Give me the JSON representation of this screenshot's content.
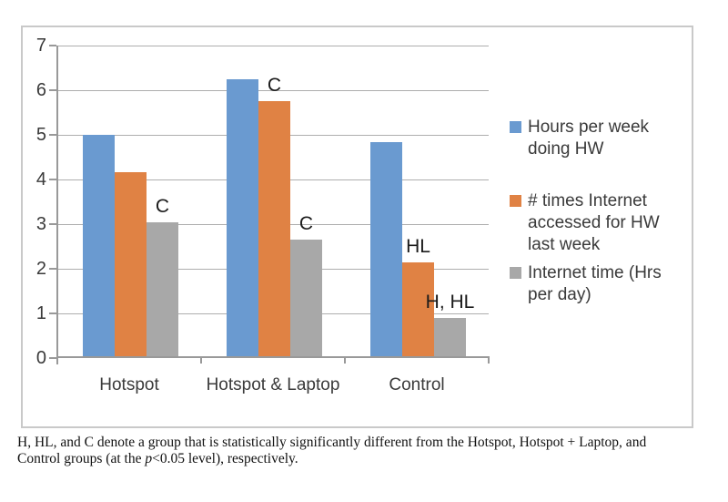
{
  "chart_data": {
    "type": "bar",
    "title": "",
    "xlabel": "",
    "ylabel": "",
    "categories": [
      "Hotspot",
      "Hotspot & Laptop",
      "Control"
    ],
    "series": [
      {
        "name": "Hours per week doing HW",
        "color": "#6a9ad0",
        "values": [
          5.0,
          6.25,
          4.83
        ],
        "annotations": [
          "",
          "",
          ""
        ]
      },
      {
        "name": "# times Internet accessed for HW last week",
        "color": "#e08244",
        "values": [
          4.17,
          5.75,
          2.15
        ],
        "annotations": [
          "",
          "C",
          "HL"
        ]
      },
      {
        "name": "Internet time (Hrs per day)",
        "color": "#a8a8a8",
        "values": [
          3.05,
          2.65,
          0.9
        ],
        "annotations": [
          "C",
          "C",
          "H, HL"
        ]
      }
    ],
    "ylim": [
      0,
      7
    ],
    "ytick_step": 1,
    "yticks": [
      "0",
      "1",
      "2",
      "3",
      "4",
      "5",
      "6",
      "7"
    ],
    "grid": true,
    "legend_position": "right"
  },
  "legend": {
    "items": [
      {
        "series_index": 0,
        "lines": [
          "Hours per week",
          "doing HW"
        ]
      },
      {
        "series_index": 1,
        "lines": [
          "# times Internet",
          "accessed for HW",
          "last week"
        ]
      },
      {
        "series_index": 2,
        "lines": [
          "Internet time (Hrs",
          "per day)"
        ]
      }
    ]
  },
  "caption": {
    "line1": "H, HL, and C denote a group that is statistically significantly different from the Hotspot, Hotspot + Laptop, and",
    "line2_pre": "Control groups (at the ",
    "line2_italic": "p",
    "line2_post": "<0.05 level), respectively."
  },
  "colors": {
    "bar_blue": "#6a9ad0",
    "bar_orange": "#e08244",
    "bar_gray": "#a8a8a8",
    "gridline": "#aeaeae",
    "axis": "#999999",
    "frame_border": "#c9c9c9",
    "chart_text": "#3a3a3a",
    "annotation_text": "#1a1a1a",
    "caption_text": "#111111"
  }
}
